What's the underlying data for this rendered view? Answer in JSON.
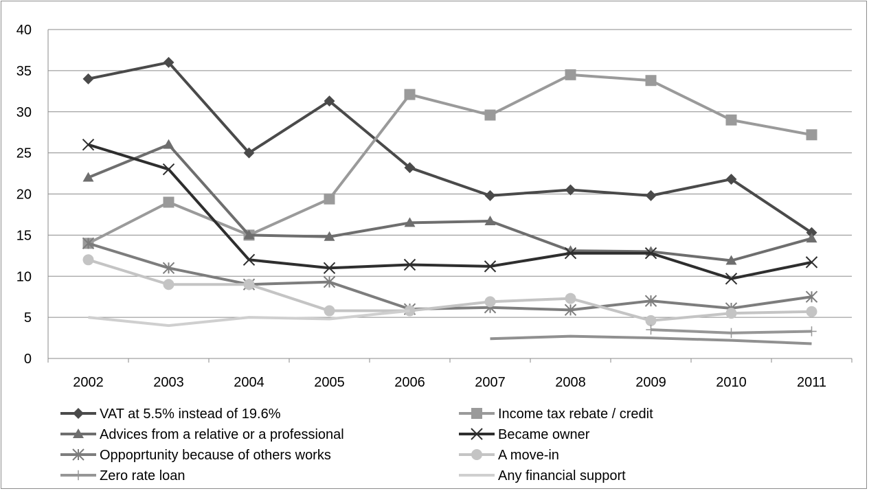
{
  "chart_data": {
    "type": "line",
    "title": "",
    "xlabel": "",
    "ylabel": "",
    "categories": [
      "2002",
      "2003",
      "2004",
      "2005",
      "2006",
      "2007",
      "2008",
      "2009",
      "2010",
      "2011"
    ],
    "ylim": [
      0,
      40
    ],
    "yticks": [
      0,
      5,
      10,
      15,
      20,
      25,
      30,
      35,
      40
    ],
    "grid": true,
    "legend_position": "bottom",
    "series": [
      {
        "name": "VAT at 5.5% instead of 19.6%",
        "color": "#4a4a4a",
        "marker": "diamond",
        "values": [
          34,
          36,
          25,
          31.3,
          23.2,
          19.8,
          20.5,
          19.8,
          21.8,
          15.3
        ]
      },
      {
        "name": "Income tax rebate / credit",
        "color": "#9a9a9a",
        "marker": "square",
        "values": [
          14,
          19,
          15,
          19.4,
          32.1,
          29.6,
          34.5,
          33.8,
          29,
          27.2
        ]
      },
      {
        "name": "Advices from a relative or a professional",
        "color": "#6e6e6e",
        "marker": "triangle",
        "values": [
          22,
          26,
          15,
          14.8,
          16.5,
          16.7,
          13.1,
          13,
          11.9,
          14.6
        ]
      },
      {
        "name": "Became owner",
        "color": "#2e2e2e",
        "marker": "x",
        "values": [
          26,
          23,
          12,
          11,
          11.4,
          11.2,
          12.8,
          12.8,
          9.7,
          11.7
        ]
      },
      {
        "name": "Oppoprtunity because of others works",
        "color": "#7d7d7d",
        "marker": "asterisk",
        "values": [
          14,
          11,
          9,
          9.3,
          6,
          6.2,
          5.9,
          7,
          6.1,
          7.5
        ]
      },
      {
        "name": "A move-in",
        "color": "#c4c4c4",
        "marker": "circle",
        "values": [
          12,
          9,
          9,
          5.8,
          5.8,
          6.9,
          7.3,
          4.6,
          5.5,
          5.7
        ]
      },
      {
        "name": "Zero rate loan",
        "color": "#969696",
        "marker": "plus",
        "values": [
          null,
          null,
          null,
          null,
          null,
          null,
          null,
          3.5,
          3.1,
          3.3
        ]
      },
      {
        "name": "Any financial support",
        "color": "#cfcfcf",
        "marker": "none",
        "values": [
          5,
          4,
          5,
          4.8,
          5.8,
          null,
          null,
          null,
          null,
          null
        ]
      },
      {
        "name": "",
        "color": "#909090",
        "marker": "none",
        "values": [
          null,
          null,
          null,
          null,
          null,
          2.4,
          2.7,
          2.5,
          2.2,
          1.8
        ]
      }
    ]
  }
}
